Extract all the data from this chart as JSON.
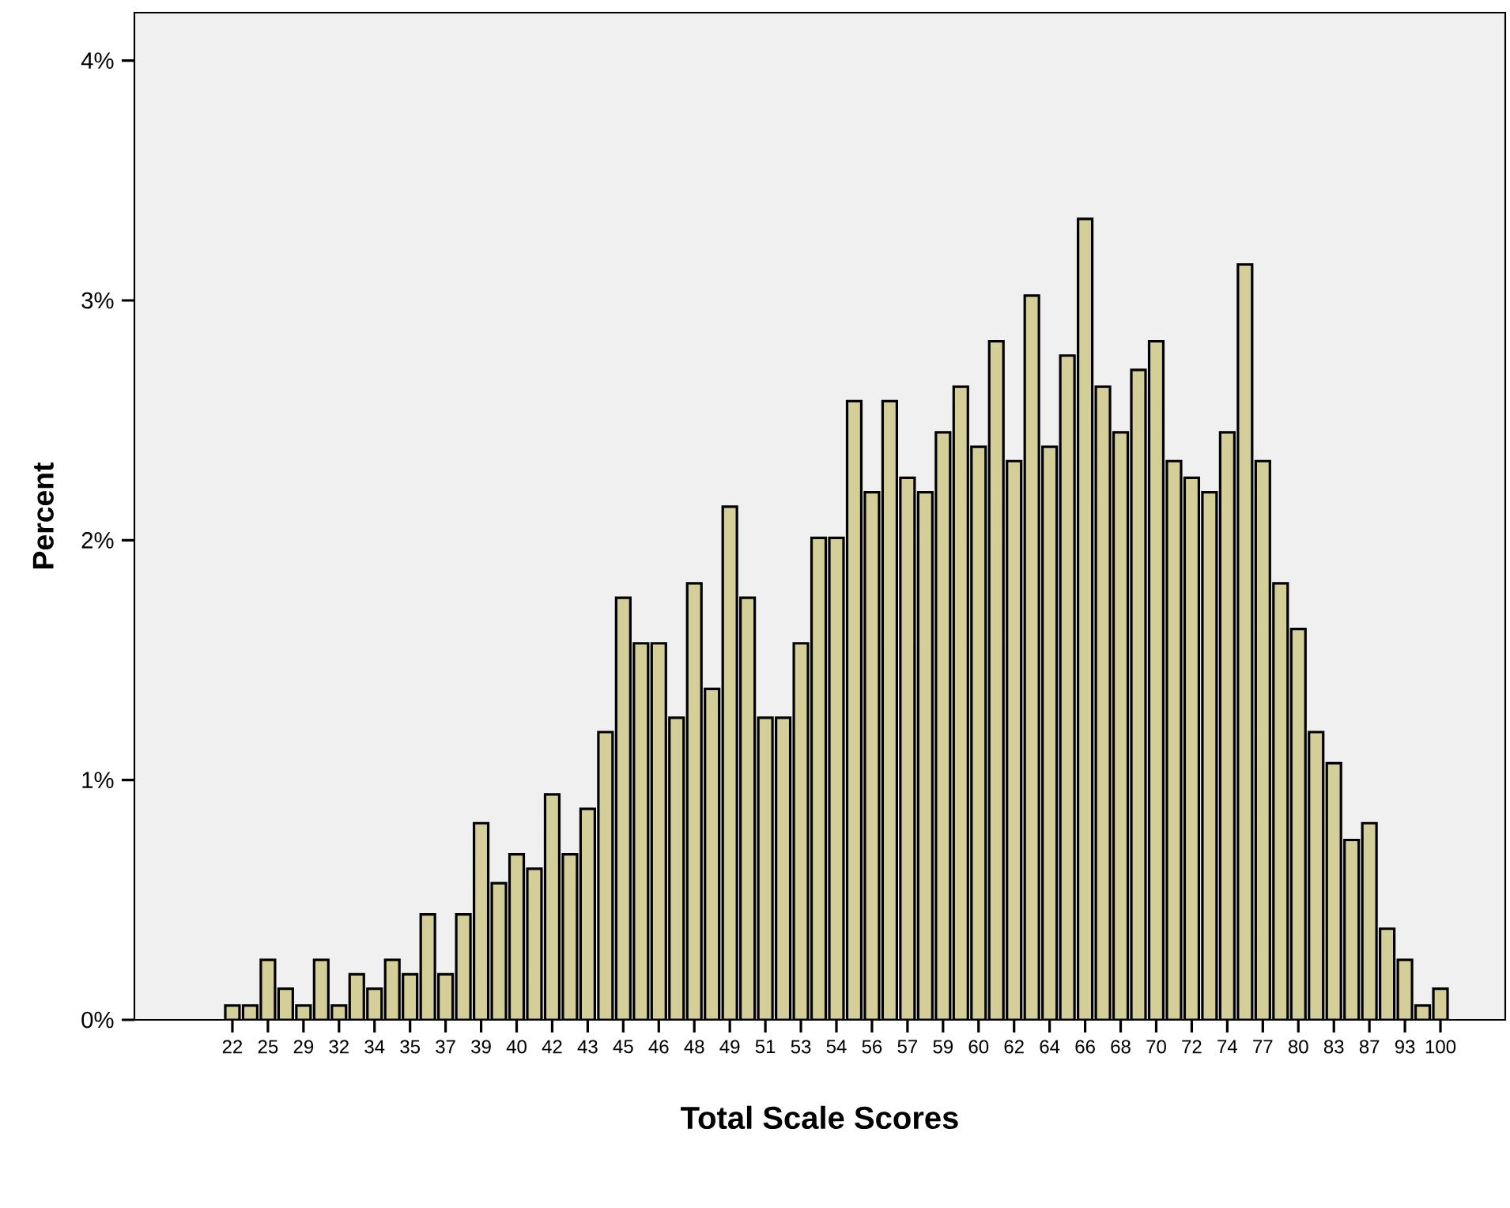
{
  "chart_data": {
    "type": "bar",
    "xlabel": "Total Scale Scores",
    "ylabel": "Percent",
    "color": "#d4cf98",
    "categories": [
      "22",
      null,
      "25",
      null,
      "29",
      null,
      "32",
      null,
      "34",
      null,
      "35",
      null,
      "37",
      null,
      "39",
      null,
      "40",
      null,
      "42",
      null,
      "43",
      null,
      "45",
      null,
      "46",
      null,
      "48",
      null,
      "49",
      null,
      "51",
      null,
      "53",
      null,
      "54",
      null,
      "56",
      null,
      "57",
      null,
      "59",
      null,
      "60",
      null,
      "62",
      null,
      "64",
      null,
      "66",
      null,
      "68",
      null,
      "70",
      null,
      "72",
      null,
      "74",
      null,
      "77",
      null,
      "80",
      null,
      "83",
      null,
      "87",
      null,
      "93",
      null,
      "100"
    ],
    "values": [
      0.06,
      0.06,
      0.25,
      0.13,
      0.06,
      0.25,
      0.06,
      0.19,
      0.13,
      0.25,
      0.19,
      0.44,
      0.19,
      0.44,
      0.82,
      0.57,
      0.69,
      0.63,
      0.94,
      0.69,
      0.88,
      1.2,
      1.76,
      1.57,
      1.57,
      1.26,
      1.82,
      1.38,
      2.14,
      1.76,
      1.26,
      1.26,
      1.57,
      2.01,
      2.01,
      2.58,
      2.2,
      2.58,
      2.26,
      2.2,
      2.45,
      2.64,
      2.39,
      2.83,
      2.33,
      3.02,
      2.39,
      2.77,
      3.34,
      2.64,
      2.45,
      2.71,
      2.83,
      2.33,
      2.26,
      2.2,
      2.45,
      3.15,
      2.33,
      1.82,
      1.63,
      1.2,
      1.07,
      0.75,
      0.82,
      0.38,
      0.25,
      0.06,
      0.13
    ],
    "ylim": [
      0,
      4.2
    ],
    "yticks": [
      {
        "value": 0,
        "label": "0%"
      },
      {
        "value": 1,
        "label": "1%"
      },
      {
        "value": 2,
        "label": "2%"
      },
      {
        "value": 3,
        "label": "3%"
      },
      {
        "value": 4,
        "label": "4%"
      }
    ]
  }
}
